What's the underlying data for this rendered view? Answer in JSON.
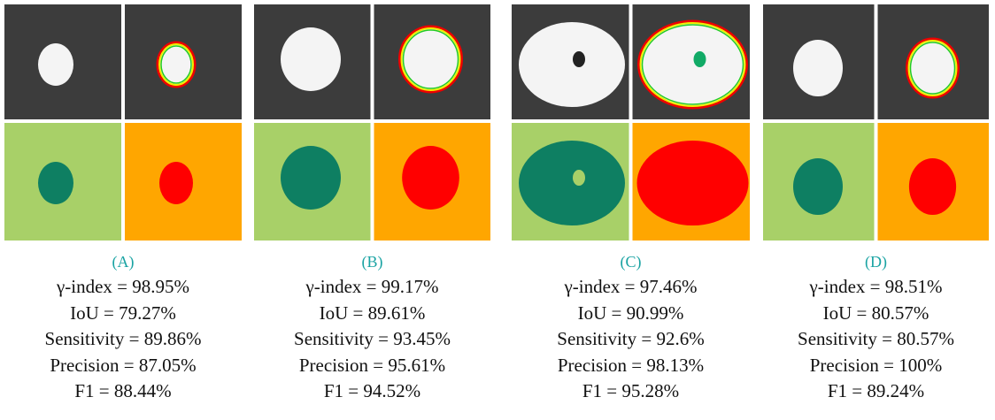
{
  "panels": [
    {
      "label": "(A)",
      "lines": [
        "γ-index = 98.95%",
        "IoU = 79.27%",
        "Sensitivity = 89.86%",
        "Precision = 87.05%",
        "F1 = 88.44%"
      ]
    },
    {
      "label": "(B)",
      "lines": [
        "γ-index = 99.17%",
        "IoU = 89.61%",
        "Sensitivity = 93.45%",
        "Precision = 95.61%",
        "F1 = 94.52%"
      ]
    },
    {
      "label": "(C)",
      "lines": [
        "γ-index = 97.46%",
        "IoU = 90.99%",
        "Sensitivity = 92.6%",
        "Precision = 98.13%",
        "F1 = 95.28%"
      ]
    },
    {
      "label": "(D)",
      "lines": [
        "γ-index = 98.51%",
        "IoU = 80.57%",
        "Sensitivity = 80.57%",
        "Precision = 100%",
        "F1 = 89.24%"
      ]
    }
  ]
}
